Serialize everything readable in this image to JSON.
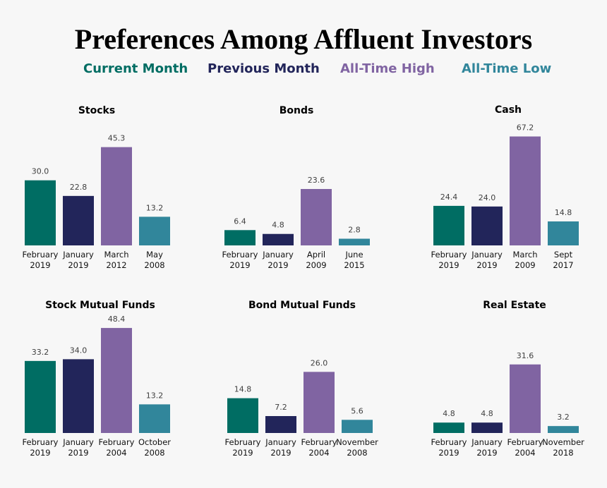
{
  "title": "Preferences Among Affluent Investors",
  "legend": [
    {
      "label": "Current Month",
      "color": "#006d63"
    },
    {
      "label": "Previous Month",
      "color": "#22255a"
    },
    {
      "label": "All-Time High",
      "color": "#8064a2"
    },
    {
      "label": "All-Time Low",
      "color": "#31869b"
    }
  ],
  "chart_data": [
    {
      "type": "bar",
      "title": "Stocks",
      "categories": [
        [
          "February",
          "2019"
        ],
        [
          "January",
          "2019"
        ],
        [
          "March",
          "2012"
        ],
        [
          "May",
          "2008"
        ]
      ],
      "values": [
        30.0,
        22.8,
        45.3,
        13.2
      ],
      "labels": [
        "30.0",
        "22.8",
        "45.3",
        "13.2"
      ],
      "ylim": [
        0,
        65
      ]
    },
    {
      "type": "bar",
      "title": "Bonds",
      "categories": [
        [
          "February",
          "2019"
        ],
        [
          "January",
          "2019"
        ],
        [
          "April",
          "2009"
        ],
        [
          "June",
          "2015"
        ]
      ],
      "values": [
        6.4,
        4.8,
        23.6,
        2.8
      ],
      "labels": [
        "6.4",
        "4.8",
        "23.6",
        "2.8"
      ],
      "ylim": [
        0,
        59
      ]
    },
    {
      "type": "bar",
      "title": "Cash",
      "categories": [
        [
          "February",
          "2019"
        ],
        [
          "January",
          "2019"
        ],
        [
          "March",
          "2009"
        ],
        [
          "Sept",
          "2017"
        ]
      ],
      "values": [
        24.4,
        24.0,
        67.2,
        14.8
      ],
      "labels": [
        "24.4",
        "24.0",
        "67.2",
        "14.8"
      ],
      "ylim": [
        0,
        87
      ]
    },
    {
      "type": "bar",
      "title": "Stock Mutual Funds",
      "categories": [
        [
          "February",
          "2019"
        ],
        [
          "January",
          "2019"
        ],
        [
          "February",
          "2004"
        ],
        [
          "October",
          "2008"
        ]
      ],
      "values": [
        33.2,
        34.0,
        48.4,
        13.2
      ],
      "labels": [
        "33.2",
        "34.0",
        "48.4",
        "13.2"
      ],
      "ylim": [
        0,
        65
      ]
    },
    {
      "type": "bar",
      "title": "Bond Mutual Funds",
      "categories": [
        [
          "February",
          "2019"
        ],
        [
          "January",
          "2019"
        ],
        [
          "February",
          "2004"
        ],
        [
          "November",
          "2008"
        ]
      ],
      "values": [
        14.8,
        7.2,
        26.0,
        5.6
      ],
      "labels": [
        "14.8",
        "7.2",
        "26.0",
        "5.6"
      ],
      "ylim": [
        0,
        60
      ]
    },
    {
      "type": "bar",
      "title": "Real Estate",
      "categories": [
        [
          "February",
          "2019"
        ],
        [
          "January",
          "2019"
        ],
        [
          "February",
          "2004"
        ],
        [
          "November",
          "2018"
        ]
      ],
      "values": [
        4.8,
        4.8,
        31.6,
        3.2
      ],
      "labels": [
        "4.8",
        "4.8",
        "31.6",
        "3.2"
      ],
      "ylim": [
        0,
        65
      ]
    }
  ]
}
